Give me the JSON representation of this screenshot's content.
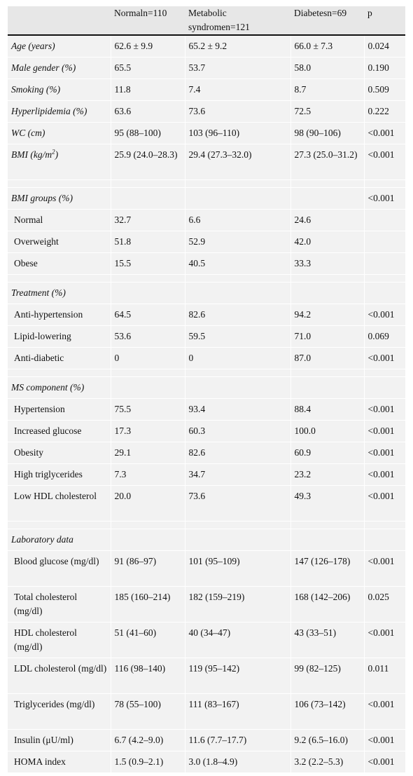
{
  "header": {
    "col0": "",
    "col1": "Normaln=110",
    "col2": "Metabolic syndromen=121",
    "col3": "Diabetesn=69",
    "col4": "p"
  },
  "rows": [
    {
      "label": "Age (years)",
      "v1": "62.6 ± 9.9",
      "v2": "65.2 ± 9.2",
      "v3": "66.0 ± 7.3",
      "p": "0.024"
    },
    {
      "label": "Male gender (%)",
      "v1": "65.5",
      "v2": "53.7",
      "v3": "58.0",
      "p": "0.190"
    },
    {
      "label": "Smoking (%)",
      "v1": "11.8",
      "v2": "7.4",
      "v3": "8.7",
      "p": "0.509"
    },
    {
      "label": "Hyperlipidemia (%)",
      "v1": "63.6",
      "v2": "73.6",
      "v3": "72.5",
      "p": "0.222"
    },
    {
      "label": "WC (cm)",
      "v1": "95 (88–100)",
      "v2": "103 (96–110)",
      "v3": "98 (90–106)",
      "p": "<0.001"
    },
    {
      "label": "BMI (kg/m",
      "label_sup": "2",
      "label_end": ")",
      "v1": "25.9 (24.0–28.3)",
      "v2": "29.4 (27.3–32.0)",
      "v3": "27.3 (25.0–31.2)",
      "p": "<0.001"
    },
    {
      "label": "BMI groups (%)",
      "v1": "",
      "v2": "",
      "v3": "",
      "p": "<0.001"
    },
    {
      "label": "Normal",
      "v1": "32.7",
      "v2": "6.6",
      "v3": "24.6",
      "p": ""
    },
    {
      "label": "Overweight",
      "v1": "51.8",
      "v2": "52.9",
      "v3": "42.0",
      "p": ""
    },
    {
      "label": "Obese",
      "v1": "15.5",
      "v2": "40.5",
      "v3": "33.3",
      "p": ""
    },
    {
      "label": "Treatment (%)",
      "v1": "",
      "v2": "",
      "v3": "",
      "p": ""
    },
    {
      "label": "Anti-hypertension",
      "v1": "64.5",
      "v2": "82.6",
      "v3": "94.2",
      "p": "<0.001"
    },
    {
      "label": "Lipid-lowering",
      "v1": "53.6",
      "v2": "59.5",
      "v3": "71.0",
      "p": "0.069"
    },
    {
      "label": "Anti-diabetic",
      "v1": "0",
      "v2": "0",
      "v3": "87.0",
      "p": "<0.001"
    },
    {
      "label": "MS component (%)",
      "v1": "",
      "v2": "",
      "v3": "",
      "p": ""
    },
    {
      "label": "Hypertension",
      "v1": "75.5",
      "v2": "93.4",
      "v3": "88.4",
      "p": "<0.001"
    },
    {
      "label": "Increased glucose",
      "v1": "17.3",
      "v2": "60.3",
      "v3": "100.0",
      "p": "<0.001"
    },
    {
      "label": "Obesity",
      "v1": "29.1",
      "v2": "82.6",
      "v3": "60.9",
      "p": "<0.001"
    },
    {
      "label": "High triglycerides",
      "v1": "7.3",
      "v2": "34.7",
      "v3": "23.2",
      "p": "<0.001"
    },
    {
      "label": "Low HDL cholesterol",
      "v1": "20.0",
      "v2": "73.6",
      "v3": "49.3",
      "p": "<0.001"
    },
    {
      "label": "Laboratory data",
      "v1": "",
      "v2": "",
      "v3": "",
      "p": ""
    },
    {
      "label": "Blood glucose (mg/dl)",
      "v1": "91 (86–97)",
      "v2": "101 (95–109)",
      "v3": "147 (126–178)",
      "p": "<0.001"
    },
    {
      "label": "Total cholesterol (mg/dl)",
      "v1": "185 (160–214)",
      "v2": "182 (159–219)",
      "v3": "168 (142–206)",
      "p": "0.025"
    },
    {
      "label": "HDL cholesterol (mg/dl)",
      "v1": "51 (41–60)",
      "v2": "40 (34–47)",
      "v3": "43 (33–51)",
      "p": "<0.001"
    },
    {
      "label": "LDL cholesterol (mg/dl)",
      "v1": "116 (98–140)",
      "v2": "119 (95–142)",
      "v3": "99 (82–125)",
      "p": "0.011"
    },
    {
      "label": "Triglycerides (mg/dl)",
      "v1": "78 (55–100)",
      "v2": "111 (83–167)",
      "v3": "106 (73–142)",
      "p": "<0.001"
    },
    {
      "label": "Insulin (μU/ml)",
      "v1": "6.7 (4.2–9.0)",
      "v2": "11.6 (7.7–17.7)",
      "v3": "9.2 (6.5–16.0)",
      "p": "<0.001"
    },
    {
      "label": "HOMA index",
      "v1": "1.5 (0.9–2.1)",
      "v2": "3.0 (1.8–4.9)",
      "v3": "3.2 (2.2–5.3)",
      "p": "<0.001"
    }
  ]
}
